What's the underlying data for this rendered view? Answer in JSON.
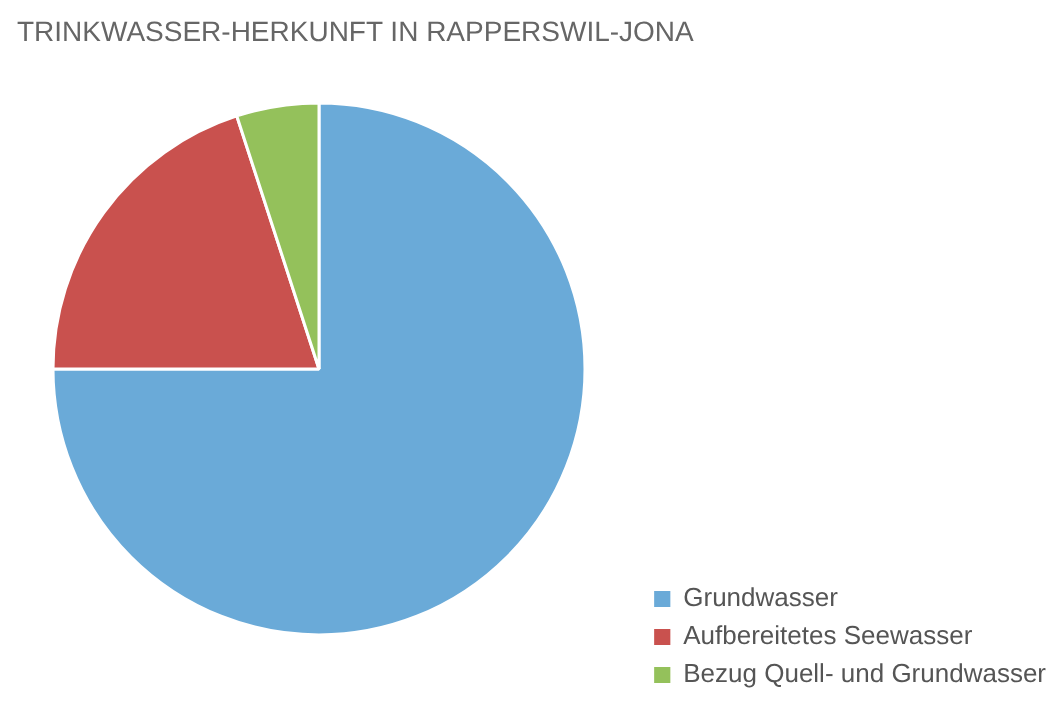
{
  "chart_data": {
    "type": "pie",
    "title": "TRINKWASSER-HERKUNFT IN RAPPERSWIL-JONA",
    "categories": [
      "Grundwasser",
      "Aufbereitetes Seewasser",
      "Bezug Quell- und Grundwasser"
    ],
    "values": [
      75,
      20,
      5
    ],
    "colors": [
      "#6aaad8",
      "#c9514e",
      "#94c15b"
    ],
    "legend": "bottom right"
  }
}
